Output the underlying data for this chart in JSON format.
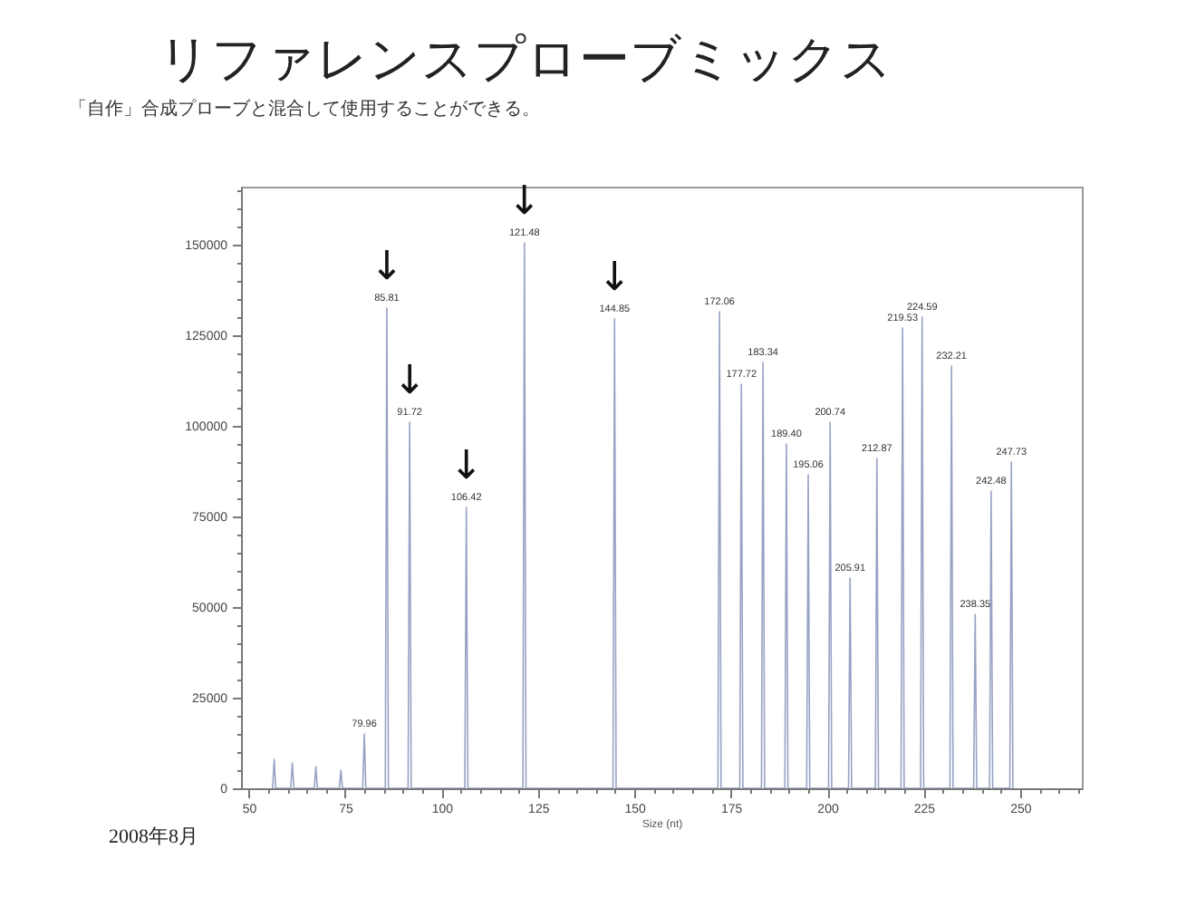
{
  "chart_data": {
    "type": "line",
    "title": "リファレンスプローブミックス",
    "subtitle": "「自作」合成プローブと混合して使用することができる。",
    "xlabel": "Size (nt)",
    "annotations": [
      {
        "text": "79.96",
        "x": 79.96,
        "y": 15000
      },
      {
        "text": "85.81",
        "x": 85.81,
        "y": 132500
      },
      {
        "text": "91.72",
        "x": 91.72,
        "y": 101000
      },
      {
        "text": "106.42",
        "x": 106.42,
        "y": 77500
      },
      {
        "text": "121.48",
        "x": 121.48,
        "y": 150500
      },
      {
        "text": "144.85",
        "x": 144.85,
        "y": 129500
      },
      {
        "text": "172.06",
        "x": 172.06,
        "y": 131500
      },
      {
        "text": "177.72",
        "x": 177.72,
        "y": 111500
      },
      {
        "text": "183.34",
        "x": 183.34,
        "y": 117500
      },
      {
        "text": "189.40",
        "x": 189.4,
        "y": 95000
      },
      {
        "text": "195.06",
        "x": 195.06,
        "y": 86500
      },
      {
        "text": "200.74",
        "x": 200.74,
        "y": 101000
      },
      {
        "text": "205.91",
        "x": 205.91,
        "y": 58000
      },
      {
        "text": "212.87",
        "x": 212.87,
        "y": 91000
      },
      {
        "text": "219.53",
        "x": 219.53,
        "y": 127000
      },
      {
        "text": "224.59",
        "x": 224.59,
        "y": 130000
      },
      {
        "text": "232.21",
        "x": 232.21,
        "y": 116500
      },
      {
        "text": "238.35",
        "x": 238.35,
        "y": 48000
      },
      {
        "text": "242.48",
        "x": 242.48,
        "y": 82000
      },
      {
        "text": "247.73",
        "x": 247.73,
        "y": 90000
      },
      {
        "text": "↓",
        "x": 85.81,
        "y": 132500
      },
      {
        "text": "↓",
        "x": 91.72,
        "y": 101000
      },
      {
        "text": "↓",
        "x": 106.42,
        "y": 77500
      },
      {
        "text": "↓",
        "x": 121.48,
        "y": 150500
      },
      {
        "text": "↓",
        "x": 144.85,
        "y": 129500
      },
      "2008年8月"
    ],
    "x": [
      56.2,
      56.6,
      57.0,
      60.9,
      61.3,
      61.7,
      67.0,
      67.4,
      67.8,
      73.5,
      73.9,
      74.3,
      79.56,
      79.96,
      80.36,
      85.41,
      85.81,
      86.21,
      91.32,
      91.72,
      92.12,
      106.02,
      106.42,
      106.82,
      121.08,
      121.48,
      121.88,
      144.45,
      144.85,
      145.25,
      171.66,
      172.06,
      172.46,
      177.32,
      177.72,
      178.12,
      182.94,
      183.34,
      183.74,
      189.0,
      189.4,
      189.8,
      194.66,
      195.06,
      195.46,
      200.34,
      200.74,
      201.14,
      205.51,
      205.91,
      206.31,
      212.47,
      212.87,
      213.27,
      219.13,
      219.53,
      219.93,
      224.19,
      224.59,
      224.99,
      231.81,
      232.21,
      232.61,
      237.95,
      238.35,
      238.75,
      242.08,
      242.48,
      242.88,
      247.33,
      247.73,
      248.13
    ],
    "series": [
      {
        "color": "#98a2c4",
        "values": [
          0,
          8000,
          0,
          0,
          7000,
          0,
          0,
          6000,
          0,
          0,
          5000,
          0,
          0,
          15000,
          0,
          0,
          132500,
          0,
          0,
          101000,
          0,
          0,
          77500,
          0,
          0,
          150500,
          0,
          0,
          129500,
          0,
          0,
          131500,
          0,
          0,
          111500,
          0,
          0,
          117500,
          0,
          0,
          95000,
          0,
          0,
          86500,
          0,
          0,
          101000,
          0,
          0,
          58000,
          0,
          0,
          91000,
          0,
          0,
          127000,
          0,
          0,
          130000,
          0,
          0,
          116500,
          0,
          0,
          48000,
          0,
          0,
          82000,
          0,
          0,
          90000,
          0
        ]
      }
    ],
    "xlim": [
      48,
      266
    ],
    "ylim": [
      0,
      166000
    ],
    "xticks": [
      50,
      {
        "value": 55,
        "label": null
      },
      {
        "value": 60,
        "label": null
      },
      {
        "value": 65,
        "label": null
      },
      {
        "value": 70,
        "label": null
      },
      75,
      {
        "value": 80,
        "label": null
      },
      {
        "value": 85,
        "label": null
      },
      {
        "value": 90,
        "label": null
      },
      {
        "value": 95,
        "label": null
      },
      100,
      {
        "value": 105,
        "label": null
      },
      {
        "value": 110,
        "label": null
      },
      {
        "value": 115,
        "label": null
      },
      {
        "value": 120,
        "label": null
      },
      125,
      {
        "value": 130,
        "label": null
      },
      {
        "value": 135,
        "label": null
      },
      {
        "value": 140,
        "label": null
      },
      {
        "value": 145,
        "label": null
      },
      150,
      {
        "value": 155,
        "label": null
      },
      {
        "value": 160,
        "label": null
      },
      {
        "value": 165,
        "label": null
      },
      {
        "value": 170,
        "label": null
      },
      175,
      {
        "value": 180,
        "label": null
      },
      {
        "value": 185,
        "label": null
      },
      {
        "value": 190,
        "label": null
      },
      {
        "value": 195,
        "label": null
      },
      200,
      {
        "value": 205,
        "label": null
      },
      {
        "value": 210,
        "label": null
      },
      {
        "value": 215,
        "label": null
      },
      {
        "value": 220,
        "label": null
      },
      225,
      {
        "value": 230,
        "label": null
      },
      {
        "value": 235,
        "label": null
      },
      {
        "value": 240,
        "label": null
      },
      {
        "value": 245,
        "label": null
      },
      250,
      {
        "value": 255,
        "label": null
      },
      {
        "value": 260,
        "label": null
      },
      {
        "value": 265,
        "label": null
      }
    ],
    "yticks": [
      0,
      {
        "value": 5000,
        "label": null
      },
      {
        "value": 10000,
        "label": null
      },
      {
        "value": 15000,
        "label": null
      },
      {
        "value": 20000,
        "label": null
      },
      25000,
      {
        "value": 30000,
        "label": null
      },
      {
        "value": 35000,
        "label": null
      },
      {
        "value": 40000,
        "label": null
      },
      {
        "value": 45000,
        "label": null
      },
      50000,
      {
        "value": 55000,
        "label": null
      },
      {
        "value": 60000,
        "label": null
      },
      {
        "value": 65000,
        "label": null
      },
      {
        "value": 70000,
        "label": null
      },
      75000,
      {
        "value": 80000,
        "label": null
      },
      {
        "value": 85000,
        "label": null
      },
      {
        "value": 90000,
        "label": null
      },
      {
        "value": 95000,
        "label": null
      },
      100000,
      {
        "value": 105000,
        "label": null
      },
      {
        "value": 110000,
        "label": null
      },
      {
        "value": 115000,
        "label": null
      },
      {
        "value": 120000,
        "label": null
      },
      125000,
      {
        "value": 130000,
        "label": null
      },
      {
        "value": 135000,
        "label": null
      },
      {
        "value": 140000,
        "label": null
      },
      {
        "value": 145000,
        "label": null
      },
      150000,
      {
        "value": 155000,
        "label": null
      },
      {
        "value": 160000,
        "label": null
      },
      {
        "value": 165000,
        "label": null
      }
    ],
    "grid": false
  }
}
